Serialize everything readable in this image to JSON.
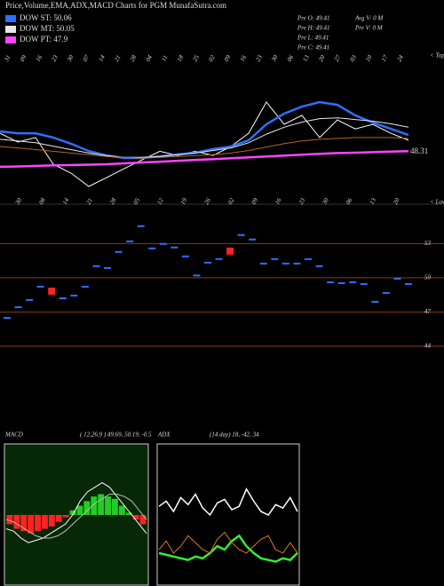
{
  "chart_data": [
    {
      "type": "line",
      "title": "Price,Volume,EMA,ADX,MACD Charts for PGM MunafaSutra.com",
      "info": [
        "Pre O: 49.41",
        "Pre H: 49.41",
        "Pre L: 49.41",
        "Pre C: 49.41",
        "Avg V: 0 M",
        "Pre V: 0 M"
      ],
      "x_labels": [
        "31",
        "09",
        "16",
        "23",
        "30",
        "07",
        "14",
        "21",
        "28",
        "04",
        "11",
        "18",
        "25",
        "02",
        "09",
        "16",
        "23",
        "30",
        "06",
        "13",
        "20",
        "27",
        "03",
        "10",
        "17",
        "24"
      ],
      "axis_note": "< Tops",
      "annotation": "48.31",
      "ylim": [
        46,
        54
      ],
      "series": [
        {
          "color": "#ffffff",
          "width": 1,
          "values": [
            49.35,
            48.84,
            49.1,
            47.55,
            47.03,
            46.26,
            46.77,
            47.3,
            47.8,
            48.3,
            48.06,
            48.3,
            48.06,
            48.58,
            49.35,
            51.16,
            49.87,
            50.39,
            49.1,
            50.13,
            49.6,
            49.87,
            49.35,
            48.94
          ]
        },
        {
          "name": "DOW ST: 50.06",
          "color": "#2f6fff",
          "width": 2.5,
          "values": [
            49.46,
            49.35,
            49.35,
            49.1,
            48.74,
            48.32,
            48.06,
            47.91,
            47.91,
            48.01,
            48.12,
            48.22,
            48.43,
            48.58,
            48.94,
            49.87,
            50.49,
            50.9,
            51.16,
            51.0,
            50.39,
            49.97,
            49.61,
            49.25
          ]
        },
        {
          "name": "DOW MT: 50.05",
          "color": "#e8e8e8",
          "width": 1,
          "values": [
            49.0,
            48.9,
            48.8,
            48.6,
            48.4,
            48.2,
            48.05,
            47.95,
            47.95,
            48.0,
            48.1,
            48.2,
            48.35,
            48.5,
            48.8,
            49.3,
            49.7,
            50.0,
            50.2,
            50.25,
            50.15,
            50.05,
            49.9,
            49.7
          ]
        },
        {
          "color": "#b8641e",
          "width": 1,
          "values": [
            48.58,
            48.5,
            48.4,
            48.3,
            48.2,
            48.1,
            48.0,
            47.95,
            47.9,
            47.95,
            48.0,
            48.05,
            48.1,
            48.2,
            48.35,
            48.55,
            48.75,
            48.9,
            49.0,
            49.05,
            49.1,
            49.1,
            49.1,
            49.05
          ]
        },
        {
          "name": "DOW PT: 47.9",
          "color": "#ff44ff",
          "width": 2.5,
          "values": [
            47.4,
            47.42,
            47.45,
            47.48,
            47.5,
            47.52,
            47.55,
            47.6,
            47.65,
            47.7,
            47.75,
            47.8,
            47.85,
            47.9,
            47.95,
            48.0,
            48.05,
            48.1,
            48.15,
            48.2,
            48.22,
            48.25,
            48.28,
            48.31
          ]
        }
      ]
    },
    {
      "type": "dash",
      "x_labels": [
        "30",
        "08",
        "14",
        "21",
        "28",
        "05",
        "12",
        "19",
        "26",
        "02",
        "09",
        "16",
        "23",
        "30",
        "06",
        "13",
        "20"
      ],
      "axis_note": "< Lows",
      "ylim": [
        40.1,
        56.3
      ],
      "yticks": [
        53,
        50,
        47,
        44
      ],
      "values": [
        46.48,
        47.42,
        48.05,
        49.22,
        48.83,
        48.2,
        48.44,
        49.22,
        51.02,
        50.86,
        52.27,
        53.2,
        54.53,
        52.58,
        52.97,
        52.66,
        51.88,
        50.2,
        51.33,
        51.64,
        52.34,
        53.75,
        53.36,
        51.25,
        51.64,
        51.25,
        51.25,
        51.64,
        51.02,
        49.61,
        49.53,
        49.61,
        49.45,
        47.89,
        48.67,
        49.92,
        49.45
      ],
      "colors": [
        "#2f6fff",
        "#2f6fff",
        "#2f6fff",
        "#2f6fff",
        "#ff2222",
        "#2f6fff",
        "#2f6fff",
        "#2f6fff",
        "#2f6fff",
        "#2f6fff",
        "#2f6fff",
        "#2f6fff",
        "#2f6fff",
        "#2f6fff",
        "#2f6fff",
        "#2f6fff",
        "#2f6fff",
        "#2f6fff",
        "#2f6fff",
        "#2f6fff",
        "#ff2222",
        "#2f6fff",
        "#2f6fff",
        "#2f6fff",
        "#2f6fff",
        "#2f6fff",
        "#2f6fff",
        "#2f6fff",
        "#2f6fff",
        "#2f6fff",
        "#2f6fff",
        "#2f6fff",
        "#2f6fff",
        "#2f6fff",
        "#2f6fff",
        "#2f6fff",
        "#2f6fff"
      ]
    },
    {
      "type": "macd",
      "title": "MACD",
      "subtitle": "( 12,26,9 ) 49.69, 50.19, -0.5",
      "ylim": [
        -1.5,
        1.5
      ],
      "histogram": [
        -0.2,
        -0.3,
        -0.35,
        -0.4,
        -0.35,
        -0.3,
        -0.25,
        -0.15,
        -0.05,
        0.1,
        0.2,
        0.3,
        0.4,
        0.45,
        0.4,
        0.35,
        0.2,
        0.05,
        -0.1,
        -0.2
      ],
      "colors": {
        "positive": "#22cc22",
        "negative": "#ff2222"
      },
      "series": [
        {
          "color": "#ffffff",
          "width": 1,
          "values": [
            -0.3,
            -0.35,
            -0.5,
            -0.6,
            -0.55,
            -0.5,
            -0.4,
            -0.3,
            -0.2,
            0,
            0.3,
            0.5,
            0.6,
            0.7,
            0.6,
            0.4,
            0.2,
            0,
            -0.2,
            -0.4
          ]
        },
        {
          "color": "#bbbbbb",
          "width": 1,
          "values": [
            -0.1,
            -0.15,
            -0.25,
            -0.35,
            -0.45,
            -0.5,
            -0.5,
            -0.45,
            -0.35,
            -0.2,
            -0.05,
            0.1,
            0.25,
            0.35,
            0.45,
            0.45,
            0.4,
            0.3,
            0.1,
            -0.1
          ]
        }
      ]
    },
    {
      "type": "line",
      "title": "ADX",
      "subtitle": "(14 day) 18, -42, 34",
      "ylim": [
        0,
        80
      ],
      "series": [
        {
          "color": "#ffffff",
          "width": 1.5,
          "values": [
            45,
            48,
            42,
            50,
            46,
            52,
            44,
            40,
            47,
            49,
            43,
            45,
            55,
            48,
            42,
            40,
            46,
            44,
            50,
            42
          ]
        },
        {
          "color": "#33ee33",
          "width": 2.5,
          "values": [
            18,
            17,
            16,
            15,
            14,
            16,
            15,
            18,
            22,
            20,
            25,
            28,
            22,
            18,
            15,
            14,
            13,
            15,
            14,
            18
          ]
        },
        {
          "color": "#e07b1a",
          "width": 1,
          "values": [
            20,
            25,
            18,
            22,
            28,
            24,
            20,
            18,
            26,
            30,
            24,
            20,
            18,
            22,
            26,
            28,
            20,
            18,
            24,
            18
          ]
        }
      ]
    }
  ]
}
